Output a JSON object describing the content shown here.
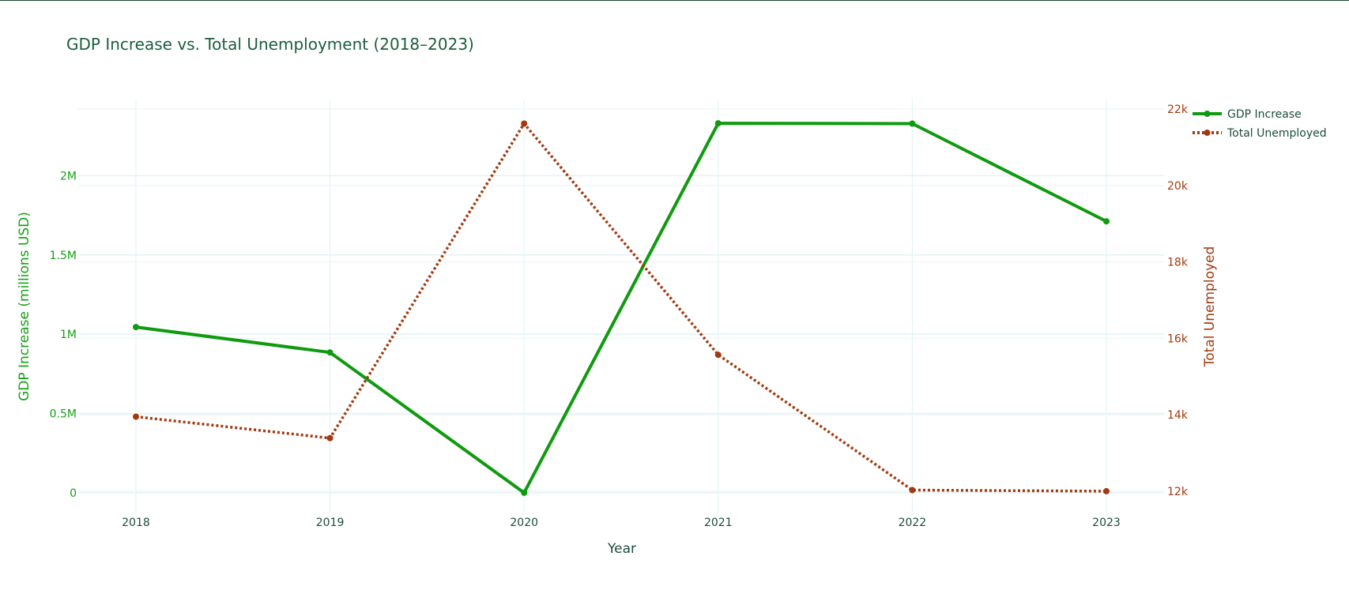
{
  "chart_data": {
    "type": "line",
    "title": "GDP Increase vs. Total Unemployment (2018–2023)",
    "xlabel": "Year",
    "x": [
      "2018",
      "2019",
      "2020",
      "2021",
      "2022",
      "2023"
    ],
    "y_left": {
      "label": "GDP Increase (millions USD)",
      "range": [
        -130000,
        2480000
      ],
      "ticks": [
        {
          "value": 0,
          "label": "0"
        },
        {
          "value": 500000,
          "label": "0.5M"
        },
        {
          "value": 1000000,
          "label": "1M"
        },
        {
          "value": 1500000,
          "label": "1.5M"
        },
        {
          "value": 2000000,
          "label": "2M"
        }
      ],
      "color": "#0f9a0f"
    },
    "y_right": {
      "label": "Total Unemployed",
      "range": [
        11420,
        22250
      ],
      "ticks": [
        {
          "value": 12000,
          "label": "12k"
        },
        {
          "value": 14000,
          "label": "14k"
        },
        {
          "value": 16000,
          "label": "16k"
        },
        {
          "value": 18000,
          "label": "18k"
        },
        {
          "value": 20000,
          "label": "20k"
        },
        {
          "value": 22000,
          "label": "22k"
        }
      ],
      "color": "#a33a0f"
    },
    "series": [
      {
        "name": "GDP Increase",
        "axis": "left",
        "color": "#0f9a0f",
        "dash": "solid",
        "values": [
          1045000,
          885000,
          0,
          2330000,
          2328000,
          1712000
        ]
      },
      {
        "name": "Total Unemployed",
        "axis": "right",
        "color": "#a33a0f",
        "dash": "dot",
        "values": [
          13950,
          13390,
          21620,
          15570,
          12030,
          12000
        ]
      }
    ],
    "grid": true,
    "legend_position": "top-right"
  }
}
